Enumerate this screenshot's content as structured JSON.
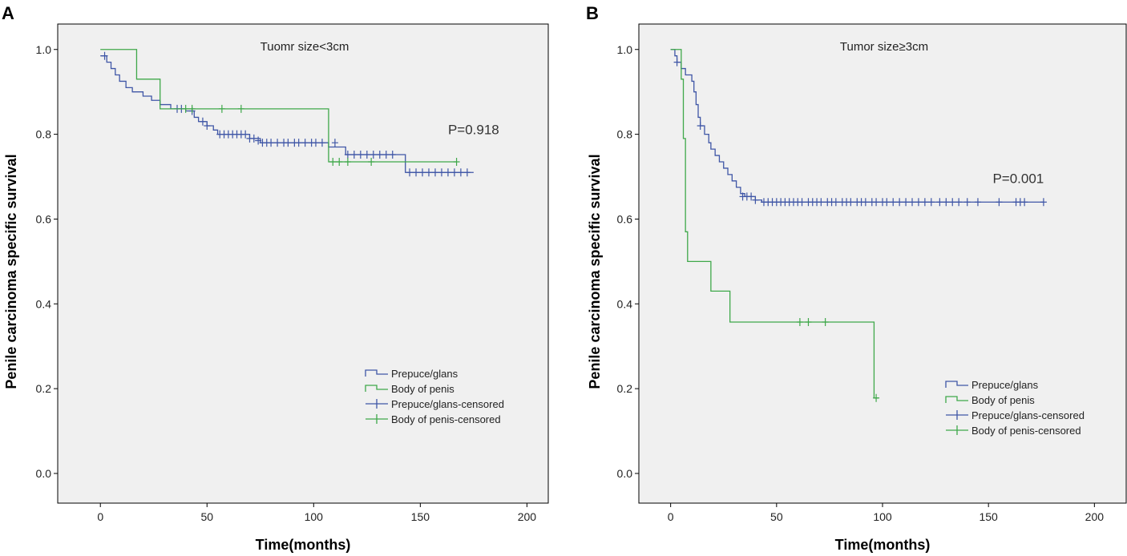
{
  "chart_data": [
    {
      "type": "line",
      "panel": "A",
      "title": "Tuomr size<3cm",
      "xlabel": "Time(months)",
      "ylabel": "Penile carcinoma specific survival",
      "xlim": [
        -20,
        210
      ],
      "ylim": [
        -0.07,
        1.06
      ],
      "xticks": [
        0,
        50,
        100,
        150,
        200
      ],
      "yticks": [
        0.0,
        0.2,
        0.4,
        0.6,
        0.8,
        1.0
      ],
      "xtick_labels": [
        "0",
        "50",
        "100",
        "150",
        "200"
      ],
      "ytick_labels": [
        "0.0",
        "0.2",
        "0.4",
        "0.6",
        "0.8",
        "1.0"
      ],
      "annotation": "P=0.918",
      "annotation_pos": [
        163,
        0.8
      ],
      "legend": [
        "Prepuce/glans",
        "Body of penis",
        "Prepuce/glans-censored",
        "Body of penis-censored"
      ],
      "legend_placement": "bottom-right",
      "series": [
        {
          "name": "Prepuce/glans",
          "color": "#3f56a6",
          "steps": [
            [
              0,
              0.985
            ],
            [
              3,
              0.97
            ],
            [
              5,
              0.955
            ],
            [
              7,
              0.94
            ],
            [
              9,
              0.925
            ],
            [
              12,
              0.91
            ],
            [
              15,
              0.9
            ],
            [
              20,
              0.89
            ],
            [
              24,
              0.88
            ],
            [
              28,
              0.87
            ],
            [
              33,
              0.86
            ],
            [
              40,
              0.855
            ],
            [
              44,
              0.84
            ],
            [
              46,
              0.83
            ],
            [
              50,
              0.82
            ],
            [
              53,
              0.81
            ],
            [
              55,
              0.8
            ],
            [
              70,
              0.79
            ],
            [
              75,
              0.78
            ],
            [
              107,
              0.77
            ],
            [
              115,
              0.752
            ],
            [
              143,
              0.71
            ],
            [
              175,
              0.71
            ]
          ],
          "censored": [
            [
              2,
              0.985
            ],
            [
              36,
              0.86
            ],
            [
              38,
              0.86
            ],
            [
              43,
              0.855
            ],
            [
              48,
              0.83
            ],
            [
              50,
              0.82
            ],
            [
              56,
              0.8
            ],
            [
              58,
              0.8
            ],
            [
              60,
              0.8
            ],
            [
              62,
              0.8
            ],
            [
              64,
              0.8
            ],
            [
              66,
              0.8
            ],
            [
              68,
              0.8
            ],
            [
              70,
              0.79
            ],
            [
              72,
              0.79
            ],
            [
              74,
              0.785
            ],
            [
              76,
              0.78
            ],
            [
              78,
              0.78
            ],
            [
              80,
              0.78
            ],
            [
              83,
              0.78
            ],
            [
              86,
              0.78
            ],
            [
              88,
              0.78
            ],
            [
              91,
              0.78
            ],
            [
              93,
              0.78
            ],
            [
              96,
              0.78
            ],
            [
              99,
              0.78
            ],
            [
              101,
              0.78
            ],
            [
              104,
              0.78
            ],
            [
              110,
              0.78
            ],
            [
              116,
              0.752
            ],
            [
              119,
              0.752
            ],
            [
              122,
              0.752
            ],
            [
              125,
              0.752
            ],
            [
              128,
              0.752
            ],
            [
              131,
              0.752
            ],
            [
              134,
              0.752
            ],
            [
              137,
              0.752
            ],
            [
              145,
              0.71
            ],
            [
              148,
              0.71
            ],
            [
              151,
              0.71
            ],
            [
              154,
              0.71
            ],
            [
              157,
              0.71
            ],
            [
              160,
              0.71
            ],
            [
              163,
              0.71
            ],
            [
              166,
              0.71
            ],
            [
              169,
              0.71
            ],
            [
              172,
              0.71
            ]
          ]
        },
        {
          "name": "Body of penis",
          "color": "#3fa84a",
          "steps": [
            [
              0,
              1.0
            ],
            [
              17,
              0.93
            ],
            [
              28,
              0.86
            ],
            [
              107,
              0.735
            ],
            [
              167,
              0.735
            ]
          ],
          "censored": [
            [
              40,
              0.86
            ],
            [
              43,
              0.86
            ],
            [
              57,
              0.86
            ],
            [
              66,
              0.86
            ],
            [
              109,
              0.735
            ],
            [
              112,
              0.735
            ],
            [
              116,
              0.735
            ],
            [
              127,
              0.735
            ],
            [
              167,
              0.735
            ]
          ]
        }
      ]
    },
    {
      "type": "line",
      "panel": "B",
      "title": "Tumor size≥3cm",
      "xlabel": "Time(months)",
      "ylabel": "Penile carcinoma specific survival",
      "xlim": [
        -15,
        215
      ],
      "ylim": [
        -0.07,
        1.06
      ],
      "xticks": [
        0,
        50,
        100,
        150,
        200
      ],
      "yticks": [
        0.0,
        0.2,
        0.4,
        0.6,
        0.8,
        1.0
      ],
      "xtick_labels": [
        "0",
        "50",
        "100",
        "150",
        "200"
      ],
      "ytick_labels": [
        "0.0",
        "0.2",
        "0.4",
        "0.6",
        "0.8",
        "1.0"
      ],
      "annotation": "P=0.001",
      "annotation_pos": [
        152,
        0.685
      ],
      "legend": [
        "Prepuce/glans",
        "Body of penis",
        "Prepuce/glans-censored",
        "Body of penis-censored"
      ],
      "legend_placement": "bottom-right",
      "series": [
        {
          "name": "Prepuce/glans",
          "color": "#3f56a6",
          "steps": [
            [
              0,
              1.0
            ],
            [
              2,
              0.985
            ],
            [
              3,
              0.97
            ],
            [
              5,
              0.955
            ],
            [
              7,
              0.94
            ],
            [
              10,
              0.925
            ],
            [
              11,
              0.9
            ],
            [
              12,
              0.87
            ],
            [
              13,
              0.84
            ],
            [
              14,
              0.82
            ],
            [
              16,
              0.8
            ],
            [
              18,
              0.78
            ],
            [
              19,
              0.765
            ],
            [
              21,
              0.75
            ],
            [
              23,
              0.735
            ],
            [
              25,
              0.72
            ],
            [
              27,
              0.705
            ],
            [
              29,
              0.69
            ],
            [
              31,
              0.675
            ],
            [
              33,
              0.66
            ],
            [
              35,
              0.653
            ],
            [
              40,
              0.645
            ],
            [
              43,
              0.64
            ],
            [
              176,
              0.64
            ]
          ],
          "censored": [
            [
              3,
              0.97
            ],
            [
              14,
              0.82
            ],
            [
              34,
              0.653
            ],
            [
              36,
              0.653
            ],
            [
              38,
              0.653
            ],
            [
              40,
              0.645
            ],
            [
              44,
              0.64
            ],
            [
              46,
              0.64
            ],
            [
              48,
              0.64
            ],
            [
              50,
              0.64
            ],
            [
              52,
              0.64
            ],
            [
              54,
              0.64
            ],
            [
              56,
              0.64
            ],
            [
              58,
              0.64
            ],
            [
              60,
              0.64
            ],
            [
              62,
              0.64
            ],
            [
              65,
              0.64
            ],
            [
              67,
              0.64
            ],
            [
              69,
              0.64
            ],
            [
              71,
              0.64
            ],
            [
              74,
              0.64
            ],
            [
              76,
              0.64
            ],
            [
              78,
              0.64
            ],
            [
              81,
              0.64
            ],
            [
              83,
              0.64
            ],
            [
              85,
              0.64
            ],
            [
              88,
              0.64
            ],
            [
              90,
              0.64
            ],
            [
              92,
              0.64
            ],
            [
              95,
              0.64
            ],
            [
              97,
              0.64
            ],
            [
              100,
              0.64
            ],
            [
              102,
              0.64
            ],
            [
              105,
              0.64
            ],
            [
              108,
              0.64
            ],
            [
              111,
              0.64
            ],
            [
              114,
              0.64
            ],
            [
              117,
              0.64
            ],
            [
              120,
              0.64
            ],
            [
              123,
              0.64
            ],
            [
              127,
              0.64
            ],
            [
              130,
              0.64
            ],
            [
              133,
              0.64
            ],
            [
              136,
              0.64
            ],
            [
              140,
              0.64
            ],
            [
              145,
              0.64
            ],
            [
              155,
              0.64
            ],
            [
              163,
              0.64
            ],
            [
              165,
              0.64
            ],
            [
              167,
              0.64
            ],
            [
              176,
              0.64
            ]
          ]
        },
        {
          "name": "Body of penis",
          "color": "#3fa84a",
          "steps": [
            [
              0,
              1.0
            ],
            [
              5,
              0.93
            ],
            [
              6,
              0.79
            ],
            [
              7,
              0.57
            ],
            [
              8,
              0.5
            ],
            [
              19,
              0.43
            ],
            [
              28,
              0.357
            ],
            [
              96,
              0.178
            ],
            [
              98,
              0.178
            ]
          ],
          "censored": [
            [
              61,
              0.357
            ],
            [
              65,
              0.357
            ],
            [
              73,
              0.357
            ],
            [
              97,
              0.178
            ]
          ]
        }
      ]
    }
  ]
}
